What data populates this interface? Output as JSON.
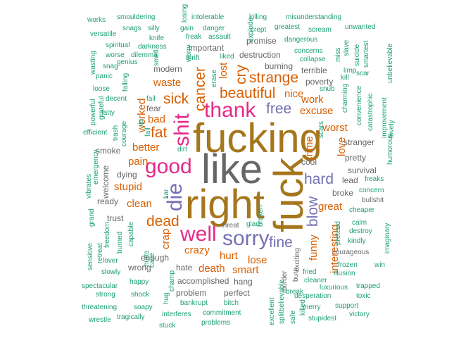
{
  "words": [
    {
      "text": "like",
      "color": "#666666",
      "size": "huge",
      "rot": 0
    },
    {
      "text": "fucking",
      "color": "#a6761d",
      "size": "huge",
      "rot": 0
    },
    {
      "text": "right",
      "color": "#a6761d",
      "size": "huge",
      "rot": 0
    },
    {
      "text": "fuck",
      "color": "#a6761d",
      "size": "huge",
      "rot": -90
    },
    {
      "text": "thank",
      "color": "#e7298a",
      "size": "xl",
      "rot": 0
    },
    {
      "text": "good",
      "color": "#e7298a",
      "size": "xl",
      "rot": 0
    },
    {
      "text": "shit",
      "color": "#e7298a",
      "size": "xl",
      "rot": -90
    },
    {
      "text": "well",
      "color": "#e7298a",
      "size": "xl",
      "rot": 0
    },
    {
      "text": "sorry",
      "color": "#7570b3",
      "size": "xl",
      "rot": 0
    },
    {
      "text": "die",
      "color": "#7570b3",
      "size": "xl",
      "rot": -90
    },
    {
      "text": "free",
      "color": "#7570b3",
      "size": "l",
      "rot": 0
    },
    {
      "text": "hard",
      "color": "#7570b3",
      "size": "l",
      "rot": 0
    },
    {
      "text": "fine",
      "color": "#7570b3",
      "size": "l",
      "rot": 0
    },
    {
      "text": "blow",
      "color": "#7570b3",
      "size": "l",
      "rot": -90
    },
    {
      "text": "beautiful",
      "color": "#d95f02",
      "size": "l",
      "rot": 0
    },
    {
      "text": "strange",
      "color": "#d95f02",
      "size": "l",
      "rot": 0
    },
    {
      "text": "cry",
      "color": "#d95f02",
      "size": "l",
      "rot": -90
    },
    {
      "text": "cancer",
      "color": "#d95f02",
      "size": "l",
      "rot": -90
    },
    {
      "text": "sick",
      "color": "#d95f02",
      "size": "l",
      "rot": 0
    },
    {
      "text": "waste",
      "color": "#d95f02",
      "size": "m",
      "rot": 0
    },
    {
      "text": "lost",
      "color": "#d95f02",
      "size": "m",
      "rot": -90
    },
    {
      "text": "fat",
      "color": "#d95f02",
      "size": "l",
      "rot": 0
    },
    {
      "text": "bad",
      "color": "#d95f02",
      "size": "m",
      "rot": 0
    },
    {
      "text": "worked",
      "color": "#d95f02",
      "size": "m",
      "rot": -90
    },
    {
      "text": "better",
      "color": "#d95f02",
      "size": "m",
      "rot": 0
    },
    {
      "text": "pain",
      "color": "#d95f02",
      "size": "m",
      "rot": 0
    },
    {
      "text": "stupid",
      "color": "#d95f02",
      "size": "m",
      "rot": 0
    },
    {
      "text": "clean",
      "color": "#d95f02",
      "size": "m",
      "rot": 0
    },
    {
      "text": "dead",
      "color": "#d95f02",
      "size": "l",
      "rot": 0
    },
    {
      "text": "crap",
      "color": "#d95f02",
      "size": "m",
      "rot": -90
    },
    {
      "text": "crazy",
      "color": "#d95f02",
      "size": "m",
      "rot": 0
    },
    {
      "text": "hurt",
      "color": "#d95f02",
      "size": "m",
      "rot": 0
    },
    {
      "text": "lose",
      "color": "#d95f02",
      "size": "m",
      "rot": 0
    },
    {
      "text": "death",
      "color": "#d95f02",
      "size": "m",
      "rot": 0
    },
    {
      "text": "smart",
      "color": "#d95f02",
      "size": "m",
      "rot": 0
    },
    {
      "text": "nice",
      "color": "#d95f02",
      "size": "m",
      "rot": 0
    },
    {
      "text": "work",
      "color": "#d95f02",
      "size": "m",
      "rot": 0
    },
    {
      "text": "excuse",
      "color": "#d95f02",
      "size": "m",
      "rot": 0
    },
    {
      "text": "worst",
      "color": "#d95f02",
      "size": "m",
      "rot": 0
    },
    {
      "text": "crime",
      "color": "#d95f02",
      "size": "m",
      "rot": -90
    },
    {
      "text": "love",
      "color": "#d95f02",
      "size": "m",
      "rot": -90
    },
    {
      "text": "great",
      "color": "#d95f02",
      "size": "m",
      "rot": 0
    },
    {
      "text": "funny",
      "color": "#d95f02",
      "size": "m",
      "rot": -90
    },
    {
      "text": "interesting",
      "color": "#d95f02",
      "size": "m",
      "rot": -90
    },
    {
      "text": "hate",
      "color": "#666666",
      "size": "s",
      "rot": 0
    },
    {
      "text": "enough",
      "color": "#666666",
      "size": "s",
      "rot": 0
    },
    {
      "text": "wrong",
      "color": "#666666",
      "size": "s",
      "rot": 0
    },
    {
      "text": "trust",
      "color": "#666666",
      "size": "s",
      "rot": 0
    },
    {
      "text": "ready",
      "color": "#666666",
      "size": "s",
      "rot": 0
    },
    {
      "text": "welcome",
      "color": "#666666",
      "size": "s",
      "rot": -90
    },
    {
      "text": "smoke",
      "color": "#666666",
      "size": "s",
      "rot": 0
    },
    {
      "text": "dying",
      "color": "#666666",
      "size": "s",
      "rot": 0
    },
    {
      "text": "cool",
      "color": "#666666",
      "size": "s",
      "rot": 0
    },
    {
      "text": "stranger",
      "color": "#666666",
      "size": "s",
      "rot": 0
    },
    {
      "text": "pretty",
      "color": "#666666",
      "size": "s",
      "rot": 0
    },
    {
      "text": "survival",
      "color": "#666666",
      "size": "s",
      "rot": 0
    },
    {
      "text": "lead",
      "color": "#666666",
      "size": "s",
      "rot": 0
    },
    {
      "text": "broke",
      "color": "#666666",
      "size": "s",
      "rot": 0
    },
    {
      "text": "bullshit",
      "color": "#666666",
      "size": "xs",
      "rot": 0
    },
    {
      "text": "important",
      "color": "#666666",
      "size": "s",
      "rot": 0
    },
    {
      "text": "modern",
      "color": "#666666",
      "size": "s",
      "rot": 0
    },
    {
      "text": "fear",
      "color": "#666666",
      "size": "s",
      "rot": 0
    },
    {
      "text": "promise",
      "color": "#666666",
      "size": "s",
      "rot": 0
    },
    {
      "text": "destruction",
      "color": "#666666",
      "size": "s",
      "rot": 0
    },
    {
      "text": "burning",
      "color": "#666666",
      "size": "s",
      "rot": 0
    },
    {
      "text": "terrible",
      "color": "#666666",
      "size": "s",
      "rot": 0
    },
    {
      "text": "poverty",
      "color": "#666666",
      "size": "s",
      "rot": 0
    },
    {
      "text": "accomplished",
      "color": "#666666",
      "size": "s",
      "rot": 0
    },
    {
      "text": "problem",
      "color": "#666666",
      "size": "s",
      "rot": 0
    },
    {
      "text": "perfect",
      "color": "#666666",
      "size": "s",
      "rot": 0
    },
    {
      "text": "hang",
      "color": "#666666",
      "size": "s",
      "rot": 0
    },
    {
      "text": "threat",
      "color": "#666666",
      "size": "xs",
      "rot": 0
    },
    {
      "text": "courageous",
      "color": "#666666",
      "size": "xs",
      "rot": 0
    },
    {
      "text": "murder",
      "color": "#666666",
      "size": "xs",
      "rot": -90
    },
    {
      "text": "burn",
      "color": "#666666",
      "size": "xs",
      "rot": -90
    },
    {
      "text": "exciting",
      "color": "#666666",
      "size": "xs",
      "rot": -90
    },
    {
      "text": "works",
      "color": "#1b9e77",
      "size": "xs",
      "rot": 0
    },
    {
      "text": "smouldering",
      "color": "#1b9e77",
      "size": "xs",
      "rot": 0
    },
    {
      "text": "losing",
      "color": "#1b9e77",
      "size": "xs",
      "rot": -90
    },
    {
      "text": "intolerable",
      "color": "#1b9e77",
      "size": "xs",
      "rot": 0
    },
    {
      "text": "killing",
      "color": "#1b9e77",
      "size": "xs",
      "rot": 0
    },
    {
      "text": "misunderstanding",
      "color": "#1b9e77",
      "size": "xs",
      "rot": 0
    },
    {
      "text": "snags",
      "color": "#1b9e77",
      "size": "xs",
      "rot": 0
    },
    {
      "text": "silly",
      "color": "#1b9e77",
      "size": "xs",
      "rot": 0
    },
    {
      "text": "gain",
      "color": "#1b9e77",
      "size": "xs",
      "rot": 0
    },
    {
      "text": "danger",
      "color": "#1b9e77",
      "size": "xs",
      "rot": 0
    },
    {
      "text": "explode",
      "color": "#1b9e77",
      "size": "xs",
      "rot": -90
    },
    {
      "text": "crept",
      "color": "#1b9e77",
      "size": "xs",
      "rot": 0
    },
    {
      "text": "greatest",
      "color": "#1b9e77",
      "size": "xs",
      "rot": 0
    },
    {
      "text": "scream",
      "color": "#1b9e77",
      "size": "xs",
      "rot": 0
    },
    {
      "text": "unwanted",
      "color": "#1b9e77",
      "size": "xs",
      "rot": 0
    },
    {
      "text": "versatile",
      "color": "#1b9e77",
      "size": "xs",
      "rot": 0
    },
    {
      "text": "knife",
      "color": "#1b9e77",
      "size": "xs",
      "rot": 0
    },
    {
      "text": "freak",
      "color": "#1b9e77",
      "size": "xs",
      "rot": 0
    },
    {
      "text": "assault",
      "color": "#1b9e77",
      "size": "xs",
      "rot": 0
    },
    {
      "text": "dangerous",
      "color": "#1b9e77",
      "size": "xs",
      "rot": 0
    },
    {
      "text": "spiritual",
      "color": "#1b9e77",
      "size": "xs",
      "rot": 0
    },
    {
      "text": "darkness",
      "color": "#1b9e77",
      "size": "xs",
      "rot": 0
    },
    {
      "text": "worry",
      "color": "#1b9e77",
      "size": "xs",
      "rot": -90
    },
    {
      "text": "thrift",
      "color": "#1b9e77",
      "size": "xs",
      "rot": 0
    },
    {
      "text": "liked",
      "color": "#1b9e77",
      "size": "xs",
      "rot": 0
    },
    {
      "text": "concerns",
      "color": "#1b9e77",
      "size": "xs",
      "rot": 0
    },
    {
      "text": "miss",
      "color": "#1b9e77",
      "size": "xs",
      "rot": -90
    },
    {
      "text": "slave",
      "color": "#1b9e77",
      "size": "xs",
      "rot": -90
    },
    {
      "text": "suicide",
      "color": "#1b9e77",
      "size": "xs",
      "rot": -90
    },
    {
      "text": "smartest",
      "color": "#1b9e77",
      "size": "xs",
      "rot": -90
    },
    {
      "text": "unbelievable",
      "color": "#1b9e77",
      "size": "xs",
      "rot": -90
    },
    {
      "text": "wasting",
      "color": "#1b9e77",
      "size": "xs",
      "rot": -90
    },
    {
      "text": "worse",
      "color": "#1b9e77",
      "size": "xs",
      "rot": 0
    },
    {
      "text": "dilemma",
      "color": "#1b9e77",
      "size": "xs",
      "rot": 0
    },
    {
      "text": "snag",
      "color": "#1b9e77",
      "size": "xs",
      "rot": 0
    },
    {
      "text": "genius",
      "color": "#1b9e77",
      "size": "xs",
      "rot": 0
    },
    {
      "text": "smell",
      "color": "#1b9e77",
      "size": "xs",
      "rot": -90
    },
    {
      "text": "collapse",
      "color": "#1b9e77",
      "size": "xs",
      "rot": 0
    },
    {
      "text": "limp",
      "color": "#1b9e77",
      "size": "xs",
      "rot": 0
    },
    {
      "text": "panic",
      "color": "#1b9e77",
      "size": "xs",
      "rot": 0
    },
    {
      "text": "falling",
      "color": "#1b9e77",
      "size": "xs",
      "rot": -90
    },
    {
      "text": "erase",
      "color": "#1b9e77",
      "size": "xs",
      "rot": -90
    },
    {
      "text": "kill",
      "color": "#1b9e77",
      "size": "xs",
      "rot": 0
    },
    {
      "text": "scar",
      "color": "#1b9e77",
      "size": "xs",
      "rot": 0
    },
    {
      "text": "loose",
      "color": "#1b9e77",
      "size": "xs",
      "rot": 0
    },
    {
      "text": "snub",
      "color": "#1b9e77",
      "size": "xs",
      "rot": 0
    },
    {
      "text": "charming",
      "color": "#1b9e77",
      "size": "xs",
      "rot": -90
    },
    {
      "text": "fail",
      "color": "#1b9e77",
      "size": "xs",
      "rot": 0
    },
    {
      "text": "decent",
      "color": "#1b9e77",
      "size": "xs",
      "rot": 0
    },
    {
      "text": "powerful",
      "color": "#1b9e77",
      "size": "xs",
      "rot": -90
    },
    {
      "text": "grateful",
      "color": "#1b9e77",
      "size": "xs",
      "rot": -90
    },
    {
      "text": "convenience",
      "color": "#1b9e77",
      "size": "xs",
      "rot": -90
    },
    {
      "text": "catastrophic",
      "color": "#1b9e77",
      "size": "xs",
      "rot": -90
    },
    {
      "text": "improvement",
      "color": "#1b9e77",
      "size": "xs",
      "rot": -90
    },
    {
      "text": "fatty",
      "color": "#1b9e77",
      "size": "xs",
      "rot": 0
    },
    {
      "text": "rip",
      "color": "#1b9e77",
      "size": "xs",
      "rot": -90
    },
    {
      "text": "fall",
      "color": "#1b9e77",
      "size": "xs",
      "rot": -90
    },
    {
      "text": "scars",
      "color": "#1b9e77",
      "size": "xs",
      "rot": -90
    },
    {
      "text": "efficient",
      "color": "#1b9e77",
      "size": "xs",
      "rot": 0
    },
    {
      "text": "trash",
      "color": "#1b9e77",
      "size": "xs",
      "rot": -90
    },
    {
      "text": "courage",
      "color": "#1b9e77",
      "size": "xs",
      "rot": -90
    },
    {
      "text": "lovely",
      "color": "#1b9e77",
      "size": "xs",
      "rot": -90
    },
    {
      "text": "humorous",
      "color": "#1b9e77",
      "size": "xs",
      "rot": -90
    },
    {
      "text": "dirt",
      "color": "#1b9e77",
      "size": "xs",
      "rot": 0
    },
    {
      "text": "emergency",
      "color": "#1b9e77",
      "size": "xs",
      "rot": -90
    },
    {
      "text": "freaks",
      "color": "#1b9e77",
      "size": "xs",
      "rot": 0
    },
    {
      "text": "vibrates",
      "color": "#1b9e77",
      "size": "xs",
      "rot": -90
    },
    {
      "text": "liar",
      "color": "#1b9e77",
      "size": "xs",
      "rot": -90
    },
    {
      "text": "concern",
      "color": "#1b9e77",
      "size": "xs",
      "rot": 0
    },
    {
      "text": "grand",
      "color": "#1b9e77",
      "size": "xs",
      "rot": -90
    },
    {
      "text": "cheaper",
      "color": "#1b9e77",
      "size": "xs",
      "rot": 0
    },
    {
      "text": "broken",
      "color": "#1b9e77",
      "size": "xs",
      "rot": -90
    },
    {
      "text": "freedom",
      "color": "#1b9e77",
      "size": "xs",
      "rot": -90
    },
    {
      "text": "capable",
      "color": "#1b9e77",
      "size": "xs",
      "rot": -90
    },
    {
      "text": "glad",
      "color": "#1b9e77",
      "size": "xs",
      "rot": 0
    },
    {
      "text": "pretend",
      "color": "#1b9e77",
      "size": "xs",
      "rot": -90
    },
    {
      "text": "calm",
      "color": "#1b9e77",
      "size": "xs",
      "rot": 0
    },
    {
      "text": "imaginary",
      "color": "#1b9e77",
      "size": "xs",
      "rot": -90
    },
    {
      "text": "destroy",
      "color": "#1b9e77",
      "size": "xs",
      "rot": 0
    },
    {
      "text": "kindly",
      "color": "#1b9e77",
      "size": "xs",
      "rot": 0
    },
    {
      "text": "retreat",
      "color": "#1b9e77",
      "size": "xs",
      "rot": -90
    },
    {
      "text": "burned",
      "color": "#1b9e77",
      "size": "xs",
      "rot": -90
    },
    {
      "text": "hurts",
      "color": "#1b9e77",
      "size": "xs",
      "rot": -90
    },
    {
      "text": "cave",
      "color": "#1b9e77",
      "size": "xs",
      "rot": -90
    },
    {
      "text": "sensitive",
      "color": "#1b9e77",
      "size": "xs",
      "rot": -90
    },
    {
      "text": "lover",
      "color": "#1b9e77",
      "size": "xs",
      "rot": 0
    },
    {
      "text": "frozen",
      "color": "#1b9e77",
      "size": "xs",
      "rot": 0
    },
    {
      "text": "win",
      "color": "#1b9e77",
      "size": "xs",
      "rot": 0
    },
    {
      "text": "slowly",
      "color": "#1b9e77",
      "size": "xs",
      "rot": 0
    },
    {
      "text": "fried",
      "color": "#1b9e77",
      "size": "xs",
      "rot": 0
    },
    {
      "text": "illusion",
      "color": "#1b9e77",
      "size": "xs",
      "rot": 0
    },
    {
      "text": "happy",
      "color": "#1b9e77",
      "size": "xs",
      "rot": 0
    },
    {
      "text": "champ",
      "color": "#1b9e77",
      "size": "xs",
      "rot": -90
    },
    {
      "text": "cleaner",
      "color": "#1b9e77",
      "size": "xs",
      "rot": 0
    },
    {
      "text": "spectacular",
      "color": "#1b9e77",
      "size": "xs",
      "rot": 0
    },
    {
      "text": "break",
      "color": "#1b9e77",
      "size": "xs",
      "rot": 0
    },
    {
      "text": "luxurious",
      "color": "#1b9e77",
      "size": "xs",
      "rot": 0
    },
    {
      "text": "trapped",
      "color": "#1b9e77",
      "size": "xs",
      "rot": 0
    },
    {
      "text": "strong",
      "color": "#1b9e77",
      "size": "xs",
      "rot": 0
    },
    {
      "text": "shock",
      "color": "#1b9e77",
      "size": "xs",
      "rot": 0
    },
    {
      "text": "desperation",
      "color": "#1b9e77",
      "size": "xs",
      "rot": 0
    },
    {
      "text": "toxic",
      "color": "#1b9e77",
      "size": "xs",
      "rot": 0
    },
    {
      "text": "hug",
      "color": "#1b9e77",
      "size": "xs",
      "rot": -90
    },
    {
      "text": "bankrupt",
      "color": "#1b9e77",
      "size": "xs",
      "rot": 0
    },
    {
      "text": "bitch",
      "color": "#1b9e77",
      "size": "xs",
      "rot": 0
    },
    {
      "text": "threatening",
      "color": "#1b9e77",
      "size": "xs",
      "rot": 0
    },
    {
      "text": "soapy",
      "color": "#1b9e77",
      "size": "xs",
      "rot": 0
    },
    {
      "text": "excellent",
      "color": "#1b9e77",
      "size": "xs",
      "rot": -90
    },
    {
      "text": "believable",
      "color": "#1b9e77",
      "size": "xs",
      "rot": -90
    },
    {
      "text": "merry",
      "color": "#1b9e77",
      "size": "xs",
      "rot": 0
    },
    {
      "text": "support",
      "color": "#1b9e77",
      "size": "xs",
      "rot": 0
    },
    {
      "text": "commitment",
      "color": "#1b9e77",
      "size": "xs",
      "rot": 0
    },
    {
      "text": "split",
      "color": "#1b9e77",
      "size": "xs",
      "rot": -90
    },
    {
      "text": "safe",
      "color": "#1b9e77",
      "size": "xs",
      "rot": -90
    },
    {
      "text": "killed",
      "color": "#1b9e77",
      "size": "xs",
      "rot": -90
    },
    {
      "text": "victory",
      "color": "#1b9e77",
      "size": "xs",
      "rot": 0
    },
    {
      "text": "wrestle",
      "color": "#1b9e77",
      "size": "xs",
      "rot": 0
    },
    {
      "text": "tragically",
      "color": "#1b9e77",
      "size": "xs",
      "rot": 0
    },
    {
      "text": "interferes",
      "color": "#1b9e77",
      "size": "xs",
      "rot": 0
    },
    {
      "text": "problems",
      "color": "#1b9e77",
      "size": "xs",
      "rot": 0
    },
    {
      "text": "stupidest",
      "color": "#1b9e77",
      "size": "xs",
      "rot": 0
    },
    {
      "text": "stuck",
      "color": "#1b9e77",
      "size": "xs",
      "rot": 0
    }
  ]
}
